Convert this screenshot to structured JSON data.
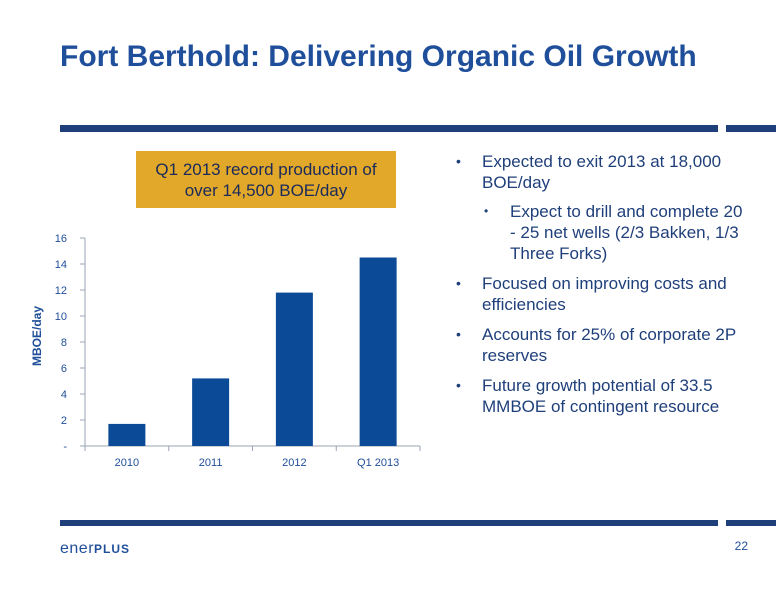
{
  "slide": {
    "title": "Fort Berthold: Delivering Organic Oil Growth",
    "page_number": "22"
  },
  "callout": {
    "text": "Q1 2013 record production of over 14,500 BOE/day"
  },
  "bullets": [
    {
      "text": "Expected to exit 2013 at 18,000 BOE/day",
      "level": 1
    },
    {
      "text": "Expect to drill and complete 20 - 25 net wells (2/3 Bakken, 1/3 Three Forks)",
      "level": 2
    },
    {
      "text": "Focused on improving costs and efficiencies",
      "level": 1
    },
    {
      "text": "Accounts for 25% of corporate 2P reserves",
      "level": 1
    },
    {
      "text": "Future growth potential of 33.5 MMBOE of contingent resource",
      "level": 1
    }
  ],
  "logo": {
    "part1": "ener",
    "part2": "PLUS",
    "icon": "enerplus-logo"
  },
  "chart_data": {
    "type": "bar",
    "categories": [
      "2010",
      "2011",
      "2012",
      "Q1 2013"
    ],
    "values": [
      1.7,
      5.2,
      11.8,
      14.5
    ],
    "title": "",
    "xlabel": "",
    "ylabel": "MBOE/day",
    "ylim": [
      0,
      16
    ],
    "yticks": [
      0,
      2,
      4,
      6,
      8,
      10,
      12,
      14,
      16
    ],
    "ytick_labels": [
      "-",
      "2",
      "4",
      "6",
      "8",
      "10",
      "12",
      "14",
      "16"
    ],
    "grid": false,
    "legend": "none",
    "bar_color": "#0b4a96"
  },
  "colors": {
    "primary": "#1f4e9a",
    "rule": "#1f3f7a",
    "callout_bg": "#e2a829",
    "bar": "#0b4a96"
  }
}
